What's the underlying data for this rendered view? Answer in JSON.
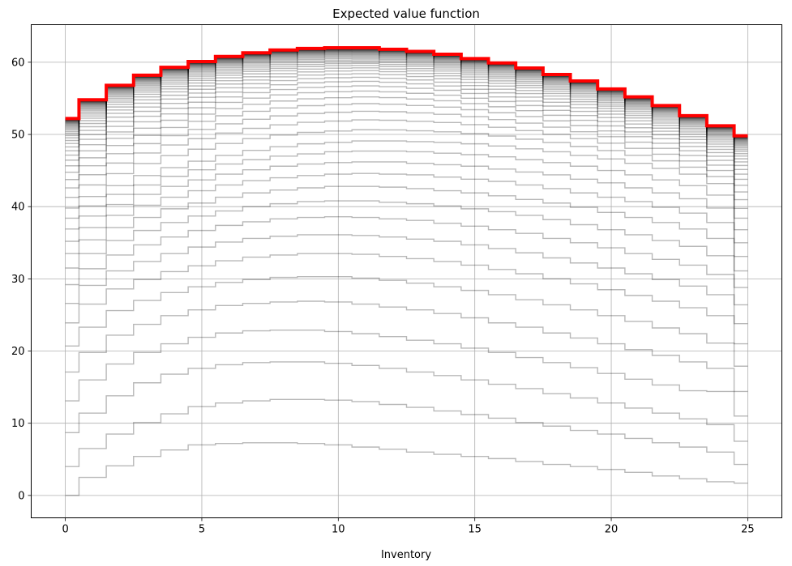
{
  "chart_data": {
    "type": "line",
    "title": "Expected value function",
    "xlabel": "Inventory",
    "ylabel": "",
    "xlim": [
      -1.25,
      26.25
    ],
    "ylim": [
      -3.1,
      65.2
    ],
    "x_ticks": [
      0,
      5,
      10,
      15,
      20,
      25
    ],
    "y_ticks": [
      0,
      10,
      20,
      30,
      40,
      50,
      60
    ],
    "grid": true,
    "step_style": "mid",
    "x": [
      0,
      1,
      2,
      3,
      4,
      5,
      6,
      7,
      8,
      9,
      10,
      11,
      12,
      13,
      14,
      15,
      16,
      17,
      18,
      19,
      20,
      21,
      22,
      23,
      24,
      25
    ],
    "iterations_count": 60,
    "gray_series_color": "#000000",
    "gray_series_opacity": 0.28,
    "final_series": {
      "color": "#ff0000",
      "values": [
        52.2,
        54.8,
        56.8,
        58.2,
        59.3,
        60.1,
        60.8,
        61.3,
        61.7,
        61.9,
        62.0,
        62.0,
        61.8,
        61.5,
        61.1,
        60.5,
        59.9,
        59.2,
        58.3,
        57.4,
        56.3,
        55.2,
        54.0,
        52.6,
        51.2,
        49.8
      ]
    },
    "early_series": [
      {
        "values": [
          0.0,
          2.5,
          4.1,
          5.4,
          6.3,
          7.0,
          7.2,
          7.3,
          7.3,
          7.2,
          7.0,
          6.7,
          6.4,
          6.0,
          5.7,
          5.4,
          5.1,
          4.7,
          4.3,
          4.0,
          3.6,
          3.2,
          2.7,
          2.3,
          1.9,
          1.7
        ]
      },
      {
        "values": [
          4.0,
          6.5,
          8.5,
          10.1,
          11.3,
          12.3,
          12.8,
          13.1,
          13.3,
          13.3,
          13.2,
          13.0,
          12.6,
          12.2,
          11.7,
          11.2,
          10.7,
          10.1,
          9.6,
          9.0,
          8.5,
          7.9,
          7.3,
          6.7,
          6.0,
          4.3
        ]
      },
      {
        "values": [
          8.7,
          11.4,
          13.8,
          15.6,
          16.8,
          17.6,
          18.1,
          18.4,
          18.5,
          18.5,
          18.3,
          18.0,
          17.6,
          17.1,
          16.6,
          16.0,
          15.4,
          14.8,
          14.1,
          13.5,
          12.8,
          12.1,
          11.4,
          10.6,
          9.8,
          7.5
        ]
      },
      {
        "values": [
          13.1,
          16.0,
          18.2,
          19.8,
          21.0,
          21.9,
          22.5,
          22.8,
          22.9,
          22.9,
          22.7,
          22.4,
          22.0,
          21.5,
          21.0,
          20.4,
          19.8,
          19.1,
          18.4,
          17.7,
          16.9,
          16.1,
          15.3,
          14.5,
          14.4,
          11.0
        ]
      },
      {
        "values": [
          17.1,
          19.8,
          22.2,
          23.7,
          24.9,
          25.7,
          26.3,
          26.6,
          26.8,
          26.9,
          26.8,
          26.5,
          26.1,
          25.7,
          25.2,
          24.6,
          23.9,
          23.3,
          22.5,
          21.8,
          21.0,
          20.2,
          19.4,
          18.5,
          17.6,
          14.4
        ]
      },
      {
        "values": [
          20.7,
          23.3,
          25.6,
          27.0,
          28.1,
          28.9,
          29.5,
          29.9,
          30.2,
          30.3,
          30.3,
          30.1,
          29.8,
          29.4,
          28.9,
          28.4,
          27.8,
          27.1,
          26.4,
          25.7,
          24.9,
          24.1,
          23.2,
          22.4,
          21.1,
          17.9
        ]
      },
      {
        "values": [
          23.9,
          26.5,
          28.6,
          29.9,
          31.0,
          31.8,
          32.5,
          33.0,
          33.3,
          33.5,
          33.5,
          33.4,
          33.1,
          32.8,
          32.4,
          31.9,
          31.3,
          30.7,
          30.0,
          29.3,
          28.5,
          27.7,
          26.9,
          26.0,
          24.9,
          21.0
        ]
      },
      {
        "values": [
          26.6,
          29.1,
          31.1,
          32.4,
          33.5,
          34.4,
          35.1,
          35.6,
          35.9,
          36.1,
          36.1,
          36.0,
          35.8,
          35.5,
          35.2,
          34.7,
          34.2,
          33.6,
          32.9,
          32.2,
          31.5,
          30.7,
          29.9,
          29.0,
          27.8,
          23.8
        ]
      },
      {
        "values": [
          29.2,
          31.4,
          33.3,
          34.7,
          35.8,
          36.7,
          37.4,
          37.9,
          38.3,
          38.5,
          38.6,
          38.5,
          38.3,
          38.1,
          37.7,
          37.3,
          36.8,
          36.3,
          35.6,
          35.0,
          34.3,
          33.5,
          32.7,
          31.9,
          30.6,
          26.4
        ]
      },
      {
        "values": [
          31.5,
          33.5,
          35.3,
          36.7,
          37.8,
          38.7,
          39.4,
          40.0,
          40.4,
          40.7,
          40.8,
          40.8,
          40.6,
          40.4,
          40.1,
          39.7,
          39.3,
          38.8,
          38.2,
          37.5,
          36.8,
          36.1,
          35.3,
          34.5,
          33.2,
          28.8
        ]
      },
      {
        "values": [
          33.5,
          35.4,
          37.1,
          38.5,
          39.7,
          40.5,
          41.3,
          41.9,
          42.3,
          42.6,
          42.8,
          42.8,
          42.7,
          42.5,
          42.2,
          41.9,
          41.5,
          41.0,
          40.5,
          39.9,
          39.2,
          38.5,
          37.8,
          36.9,
          35.6,
          31.1
        ]
      },
      {
        "values": [
          35.2,
          37.1,
          38.8,
          40.2,
          41.3,
          42.2,
          43.0,
          43.6,
          44.0,
          44.3,
          44.5,
          44.6,
          44.5,
          44.4,
          44.1,
          43.8,
          43.5,
          43.0,
          42.5,
          41.9,
          41.3,
          40.7,
          39.9,
          39.1,
          37.8,
          33.1
        ]
      },
      {
        "values": [
          36.9,
          38.7,
          40.3,
          41.7,
          42.8,
          43.7,
          44.5,
          45.1,
          45.6,
          45.9,
          46.1,
          46.2,
          46.2,
          46.0,
          45.8,
          45.6,
          45.2,
          44.8,
          44.4,
          43.8,
          43.3,
          42.6,
          41.9,
          41.1,
          39.8,
          35.0
        ]
      },
      {
        "values": [
          38.4,
          40.1,
          41.7,
          43.0,
          44.2,
          45.1,
          45.9,
          46.5,
          47.0,
          47.3,
          47.6,
          47.7,
          47.7,
          47.6,
          47.4,
          47.2,
          46.9,
          46.5,
          46.1,
          45.6,
          45.0,
          44.4,
          43.7,
          42.9,
          41.6,
          36.8
        ]
      },
      {
        "values": [
          39.8,
          41.4,
          42.9,
          44.3,
          45.4,
          46.3,
          47.1,
          47.8,
          48.3,
          48.7,
          48.9,
          49.1,
          49.1,
          49.0,
          48.9,
          48.7,
          48.4,
          48.0,
          47.6,
          47.1,
          46.6,
          46.0,
          45.3,
          44.5,
          43.2,
          38.4
        ]
      }
    ]
  }
}
